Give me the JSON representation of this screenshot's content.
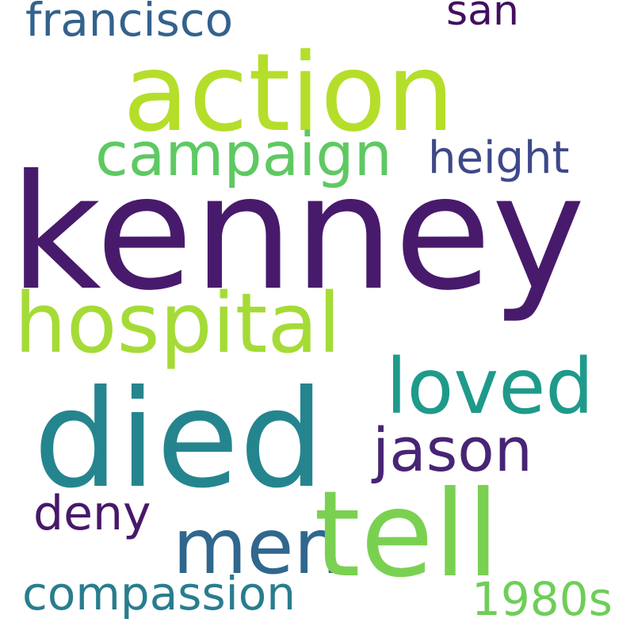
{
  "words": [
    {
      "text": "kenney",
      "color": "#481a6c",
      "weight": 1.0
    },
    {
      "text": "action",
      "color": "#b5de2b",
      "weight": 0.55
    },
    {
      "text": "died",
      "color": "#25858e",
      "weight": 0.6
    },
    {
      "text": "hospital",
      "color": "#a5db36",
      "weight": 0.4
    },
    {
      "text": "tell",
      "color": "#7ad151",
      "weight": 0.55
    },
    {
      "text": "campaign",
      "color": "#5ec962",
      "weight": 0.3
    },
    {
      "text": "loved",
      "color": "#1f9a8a",
      "weight": 0.35
    },
    {
      "text": "men",
      "color": "#30678d",
      "weight": 0.35
    },
    {
      "text": "jason",
      "color": "#482475",
      "weight": 0.3
    },
    {
      "text": "height",
      "color": "#3e4989",
      "weight": 0.22
    },
    {
      "text": "francisco",
      "color": "#33628d",
      "weight": 0.22
    },
    {
      "text": "san",
      "color": "#440f5f",
      "weight": 0.18
    },
    {
      "text": "deny",
      "color": "#48186a",
      "weight": 0.2
    },
    {
      "text": "compassion",
      "color": "#287d8e",
      "weight": 0.22
    },
    {
      "text": "1980s",
      "color": "#6ece58",
      "weight": 0.2
    }
  ]
}
